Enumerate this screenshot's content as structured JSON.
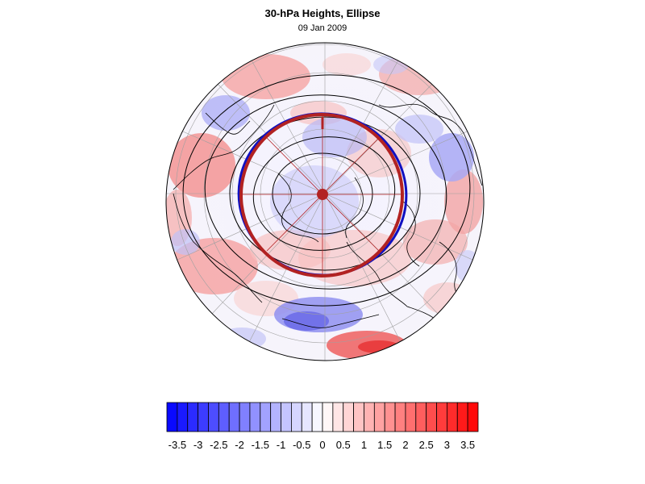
{
  "header": {
    "title": "30-hPa Heights, Ellipse",
    "date": "09 Jan 2009"
  },
  "colors": {
    "min_color": "#0000ff",
    "mid_color": "#ffffff",
    "max_color": "#ff0000",
    "ellipse_fill": "#b22222",
    "ellipse_inner": "#1010c0",
    "contour": "#000000",
    "coast": "#000000",
    "grid": "#999999"
  },
  "map": {
    "projection": "north-polar-orthographic",
    "field": "standardized 30-hPa height anomaly",
    "contours": "30-hPa heights",
    "overlay": "vortex ellipse with axes"
  },
  "colorbar": {
    "levels": [
      -3.75,
      -3.5,
      -3.25,
      -3,
      -2.75,
      -2.5,
      -2.25,
      -2,
      -1.75,
      -1.5,
      -1.25,
      -1,
      -0.75,
      -0.5,
      -0.25,
      0,
      0.25,
      0.5,
      0.75,
      1,
      1.25,
      1.5,
      1.75,
      2,
      2.25,
      2.5,
      2.75,
      3,
      3.25,
      3.5,
      3.75
    ],
    "tick_labels": [
      "-3.5",
      "-3",
      "-2.5",
      "-2",
      "-1.5",
      "-1",
      "-0.5",
      "0",
      "0.5",
      "1",
      "1.5",
      "2",
      "2.5",
      "3",
      "3.5"
    ],
    "tick_values": [
      -3.5,
      -3,
      -2.5,
      -2,
      -1.5,
      -1,
      -0.5,
      0,
      0.5,
      1,
      1.5,
      2,
      2.5,
      3,
      3.5
    ]
  }
}
